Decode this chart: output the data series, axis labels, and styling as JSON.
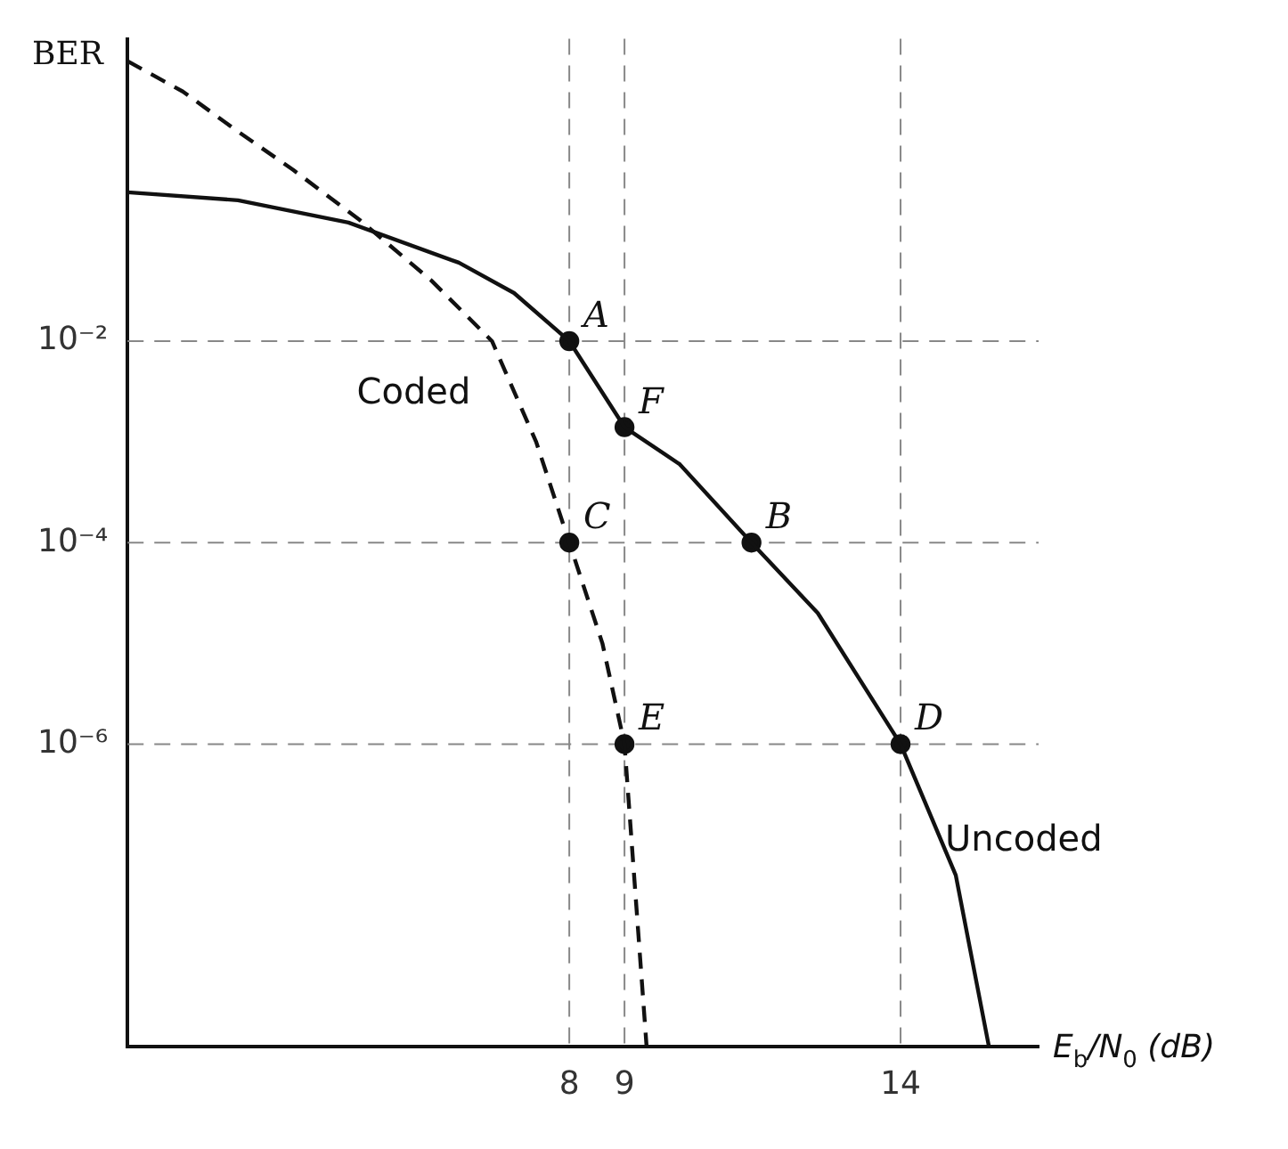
{
  "chart_data": {
    "type": "line",
    "xlabel": "E$_{b}$/N$_{0}$ (dB)",
    "ylabel": "BER",
    "log": "y",
    "xlim": [
      0,
      16.5
    ],
    "ylim": [
      1e-09,
      10
    ],
    "xticks": [
      8,
      9,
      14
    ],
    "yticks": [
      {
        "value": 0.01,
        "label": "10⁻²"
      },
      {
        "value": 0.0001,
        "label": "10⁻⁴"
      },
      {
        "value": 1e-06,
        "label": "10⁻⁶"
      }
    ],
    "grid": false,
    "legend": false,
    "series": [
      {
        "name": "Uncoded",
        "type": "line",
        "color": "#111111",
        "line_style": "solid",
        "marker": "none",
        "x": [
          0,
          2,
          4,
          6,
          7,
          8,
          9,
          10,
          11.3,
          12.5,
          14,
          15,
          15.6
        ],
        "values": [
          0.3,
          0.25,
          0.15,
          0.06,
          0.03,
          0.01,
          0.0014,
          0.0006,
          0.0001,
          2e-05,
          1e-06,
          5e-08,
          1e-09
        ]
      },
      {
        "name": "Coded",
        "type": "line",
        "color": "#111111",
        "line_style": "dashed",
        "marker": "none",
        "x": [
          0,
          1,
          2,
          3,
          4.2,
          5.5,
          6.6,
          7.4,
          8,
          8.6,
          9,
          9.4
        ],
        "values": [
          6,
          3,
          1.2,
          0.5,
          0.16,
          0.04,
          0.01,
          0.001,
          0.0001,
          1e-05,
          1e-06,
          1e-09
        ]
      },
      {
        "type": "scatter",
        "color": "#111111",
        "marker": "circle",
        "x": [
          8,
          9,
          11.3,
          14,
          8,
          9
        ],
        "values": [
          0.01,
          0.0014,
          0.0001,
          1e-06,
          0.0001,
          1e-06
        ]
      }
    ],
    "ref_lines": [
      {
        "axis": "y",
        "value": 0.01,
        "line_style": "dashed",
        "color": "#888888"
      },
      {
        "axis": "y",
        "value": 0.0001,
        "line_style": "dashed",
        "color": "#888888"
      },
      {
        "axis": "y",
        "value": 1e-06,
        "line_style": "dashed",
        "color": "#888888"
      },
      {
        "axis": "x",
        "value": 8,
        "line_style": "dashed",
        "color": "#888888"
      },
      {
        "axis": "x",
        "value": 9,
        "line_style": "dashed",
        "color": "#888888"
      },
      {
        "axis": "x",
        "value": 14,
        "line_style": "dashed",
        "color": "#888888"
      }
    ],
    "annotations": [
      {
        "text": "A",
        "x": 8,
        "y": 0.01
      },
      {
        "text": "F",
        "x": 9,
        "y": 0.0014
      },
      {
        "text": "B",
        "x": 11.3,
        "y": 0.0001
      },
      {
        "text": "D",
        "x": 14,
        "y": 1e-06
      },
      {
        "text": "C",
        "x": 8,
        "y": 0.0001
      },
      {
        "text": "E",
        "x": 9,
        "y": 1e-06
      }
    ]
  }
}
